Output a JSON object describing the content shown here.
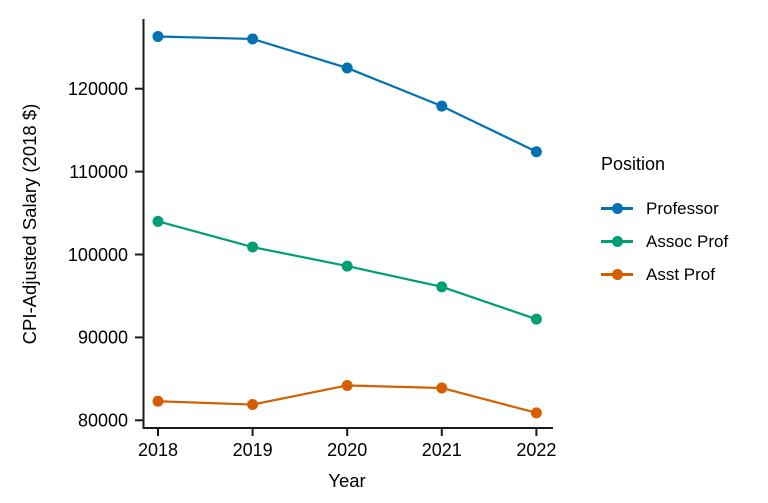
{
  "chart_data": {
    "type": "line",
    "title": "",
    "xlabel": "Year",
    "ylabel": "CPI-Adjusted Salary (2018 $)",
    "x": [
      2018,
      2019,
      2020,
      2021,
      2022
    ],
    "x_tick_labels": [
      "2018",
      "2019",
      "2020",
      "2021",
      "2022"
    ],
    "y_ticks": [
      80000,
      90000,
      100000,
      110000,
      120000
    ],
    "y_tick_labels": [
      "80000",
      "90000",
      "100000",
      "110000",
      "120000"
    ],
    "ylim": [
      79200,
      128300
    ],
    "xlim": [
      2017.85,
      2022.18
    ],
    "grid": false,
    "legend": {
      "title": "Position",
      "position": "right"
    },
    "series": [
      {
        "name": "Professor",
        "color": "#0072B2",
        "values": [
          126300,
          126000,
          122500,
          117900,
          112400
        ]
      },
      {
        "name": "Assoc Prof",
        "color": "#009E73",
        "values": [
          104000,
          100900,
          98600,
          96100,
          92200
        ]
      },
      {
        "name": "Asst Prof",
        "color": "#D55E00",
        "values": [
          82300,
          81900,
          84200,
          83900,
          80900
        ]
      }
    ]
  }
}
